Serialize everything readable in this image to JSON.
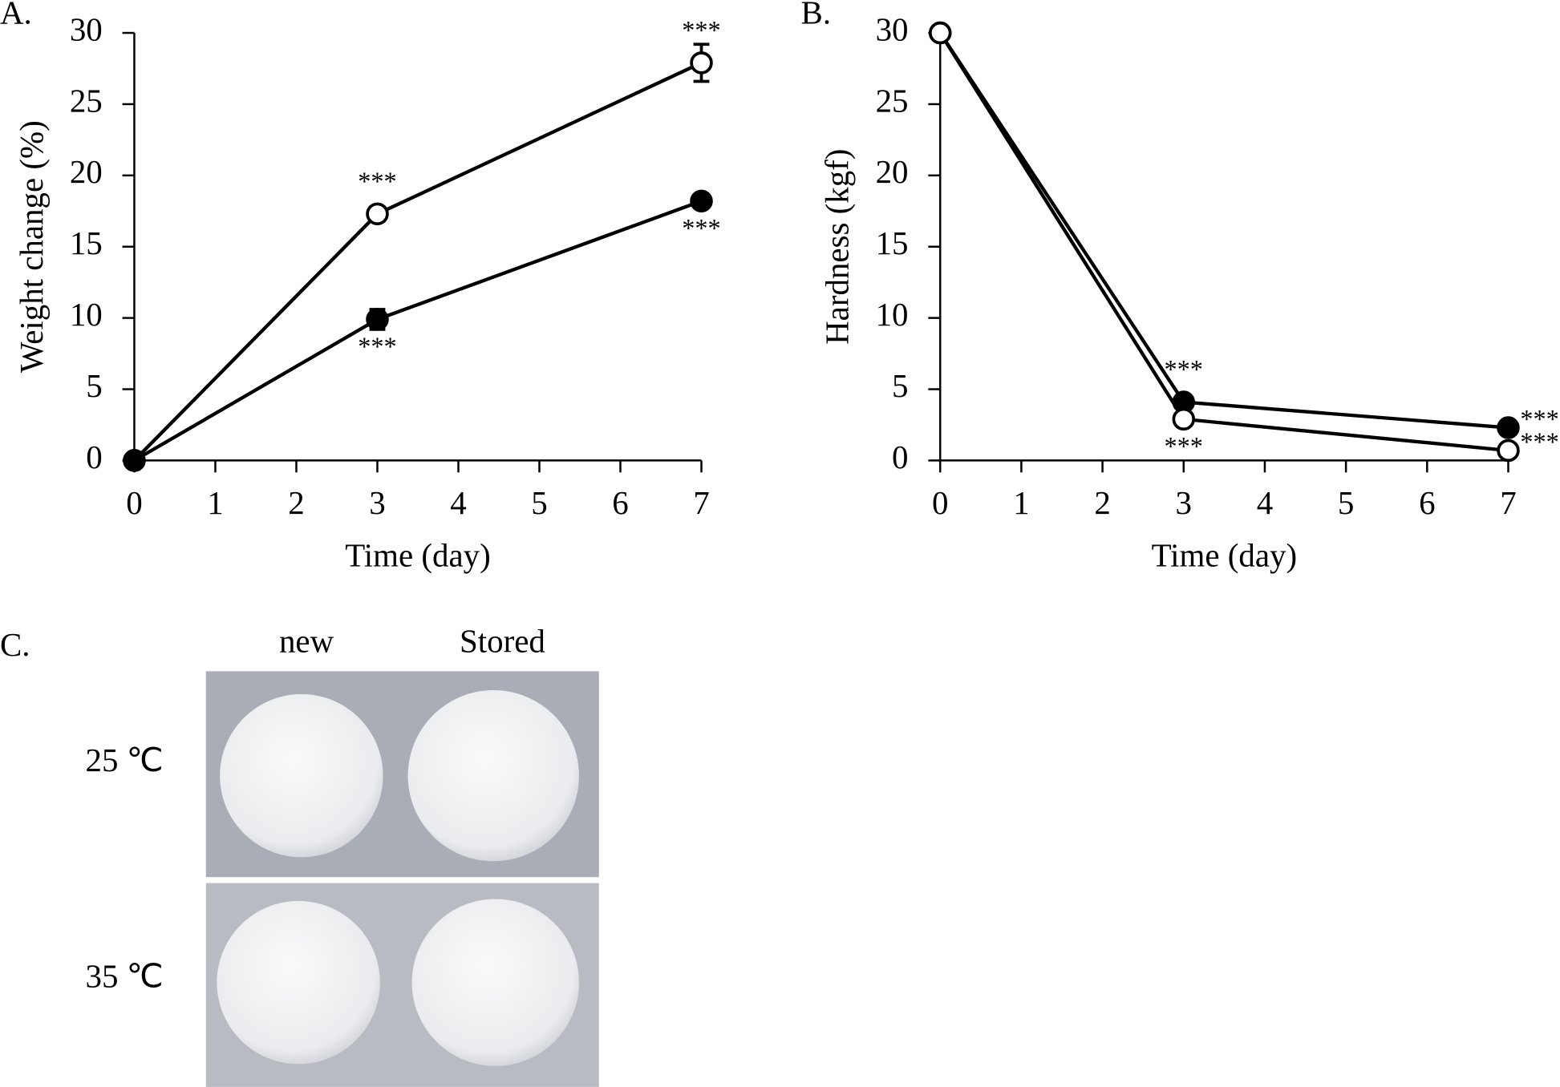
{
  "chart_data": [
    {
      "type": "line",
      "label": "A.",
      "x_label": "Time (day)",
      "y_label": "Weight change (%)",
      "x": [
        0,
        3,
        7
      ],
      "series": [
        {
          "marker_fill": "#ffffff",
          "color": "#000000",
          "values": [
            0,
            17.3,
            27.9
          ],
          "errors": [
            0,
            0.5,
            1.3
          ],
          "annotations": [
            null,
            "***",
            "***"
          ]
        },
        {
          "marker_fill": "#000000",
          "color": "#000000",
          "values": [
            0,
            9.9,
            18.2
          ],
          "errors": [
            0,
            0.7,
            0.4
          ],
          "annotations": [
            null,
            "***",
            "***"
          ]
        }
      ],
      "xlim": [
        0,
        7
      ],
      "xticks": [
        0,
        1,
        2,
        3,
        4,
        5,
        6,
        7
      ],
      "ylim": [
        0,
        30
      ],
      "yticks": [
        0,
        5,
        10,
        15,
        20,
        25,
        30
      ],
      "grid": false
    },
    {
      "type": "line",
      "label": "B.",
      "x_label": "Time (day)",
      "y_label": "Hardness (kgf)",
      "x": [
        0,
        3,
        7
      ],
      "series": [
        {
          "marker_fill": "#000000",
          "color": "#000000",
          "values": [
            30,
            4.1,
            2.3
          ],
          "annotations": [
            null,
            "***",
            "***"
          ]
        },
        {
          "marker_fill": "#ffffff",
          "color": "#000000",
          "values": [
            30,
            2.9,
            0.7
          ],
          "annotations": [
            null,
            "***",
            "***"
          ]
        }
      ],
      "xlim": [
        0,
        7
      ],
      "xticks": [
        0,
        1,
        2,
        3,
        4,
        5,
        6,
        7
      ],
      "ylim": [
        0,
        30
      ],
      "yticks": [
        0,
        5,
        10,
        15,
        20,
        25,
        30
      ],
      "grid": false
    }
  ],
  "panel_c": {
    "label": "C.",
    "columns": [
      "new",
      "Stored"
    ],
    "rows": [
      "25 ℃",
      "35 ℃"
    ]
  }
}
